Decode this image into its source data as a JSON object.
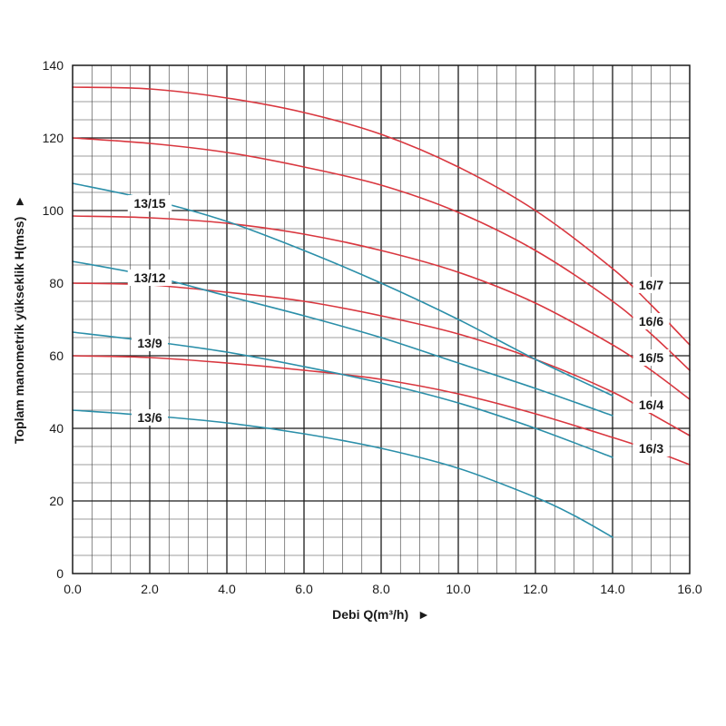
{
  "chart_data": {
    "type": "line",
    "xlabel": "Debi Q(m³/h)",
    "xlabel_arrow": "►",
    "ylabel": "Toplam manometrik yükseklik H(mss)",
    "ylabel_arrow": "►",
    "xlim": [
      0,
      16
    ],
    "ylim": [
      0,
      140
    ],
    "x_ticks": [
      "0.0",
      "2.0",
      "4.0",
      "6.0",
      "8.0",
      "10.0",
      "12.0",
      "14.0",
      "16.0"
    ],
    "y_ticks": [
      "0",
      "20",
      "40",
      "60",
      "80",
      "100",
      "120",
      "140"
    ],
    "x_tick_values": [
      0,
      2,
      4,
      6,
      8,
      10,
      12,
      14,
      16
    ],
    "y_tick_values": [
      0,
      20,
      40,
      60,
      80,
      100,
      120,
      140
    ],
    "grid": true,
    "colors": {
      "red_series": "#d9373f",
      "blue_series": "#2b8fa9"
    },
    "series": [
      {
        "name": "16/7",
        "color": "#d9373f",
        "x": [
          0,
          2,
          4,
          6,
          8,
          10,
          12,
          14,
          15,
          16
        ],
        "y": [
          134,
          133.5,
          131,
          127,
          121,
          112,
          100,
          84,
          74,
          63
        ]
      },
      {
        "name": "16/6",
        "color": "#d9373f",
        "x": [
          0,
          2,
          4,
          6,
          8,
          10,
          12,
          14,
          15,
          16
        ],
        "y": [
          120,
          118.5,
          116,
          112,
          107,
          99.5,
          89,
          75,
          66,
          56
        ]
      },
      {
        "name": "16/5",
        "color": "#d9373f",
        "x": [
          0,
          2,
          4,
          6,
          8,
          10,
          12,
          14,
          15,
          16
        ],
        "y": [
          98.5,
          98,
          96.5,
          93.5,
          89,
          83,
          74.5,
          63,
          56,
          48
        ]
      },
      {
        "name": "16/4",
        "color": "#d9373f",
        "x": [
          0,
          2,
          4,
          6,
          8,
          10,
          12,
          14,
          15,
          16
        ],
        "y": [
          80,
          79.5,
          77.5,
          75,
          71,
          66,
          59,
          50,
          44,
          38
        ]
      },
      {
        "name": "16/3",
        "color": "#d9373f",
        "x": [
          0,
          2,
          4,
          6,
          8,
          10,
          12,
          14,
          15,
          16
        ],
        "y": [
          60,
          59.5,
          58,
          56,
          53.5,
          49.5,
          44,
          37.5,
          34,
          30
        ]
      },
      {
        "name": "13/15",
        "color": "#2b8fa9",
        "x": [
          0,
          2,
          4,
          6,
          8,
          10,
          12,
          14
        ],
        "y": [
          107.5,
          103,
          97,
          89,
          80,
          70,
          59,
          49
        ]
      },
      {
        "name": "13/12",
        "color": "#2b8fa9",
        "x": [
          0,
          2,
          4,
          6,
          8,
          10,
          12,
          14
        ],
        "y": [
          86,
          82,
          76.5,
          71,
          65,
          58,
          51,
          43.5
        ]
      },
      {
        "name": "13/9",
        "color": "#2b8fa9",
        "x": [
          0,
          2,
          4,
          6,
          8,
          10,
          12,
          14
        ],
        "y": [
          66.5,
          64,
          61,
          57,
          52.5,
          47,
          40,
          32
        ]
      },
      {
        "name": "13/6",
        "color": "#2b8fa9",
        "x": [
          0,
          2,
          4,
          6,
          8,
          10,
          12,
          13,
          14
        ],
        "y": [
          45,
          43.5,
          41.5,
          38.5,
          34.5,
          29,
          21,
          16,
          10
        ]
      }
    ],
    "labels": [
      {
        "text": "16/7",
        "x": 15.0,
        "y": 79
      },
      {
        "text": "16/6",
        "x": 15.0,
        "y": 69
      },
      {
        "text": "16/5",
        "x": 15.0,
        "y": 59
      },
      {
        "text": "16/4",
        "x": 15.0,
        "y": 46
      },
      {
        "text": "16/3",
        "x": 15.0,
        "y": 34
      },
      {
        "text": "13/15",
        "x": 2.0,
        "y": 101.5
      },
      {
        "text": "13/12",
        "x": 2.0,
        "y": 81
      },
      {
        "text": "13/9",
        "x": 2.0,
        "y": 63
      },
      {
        "text": "13/6",
        "x": 2.0,
        "y": 42.5
      }
    ]
  }
}
